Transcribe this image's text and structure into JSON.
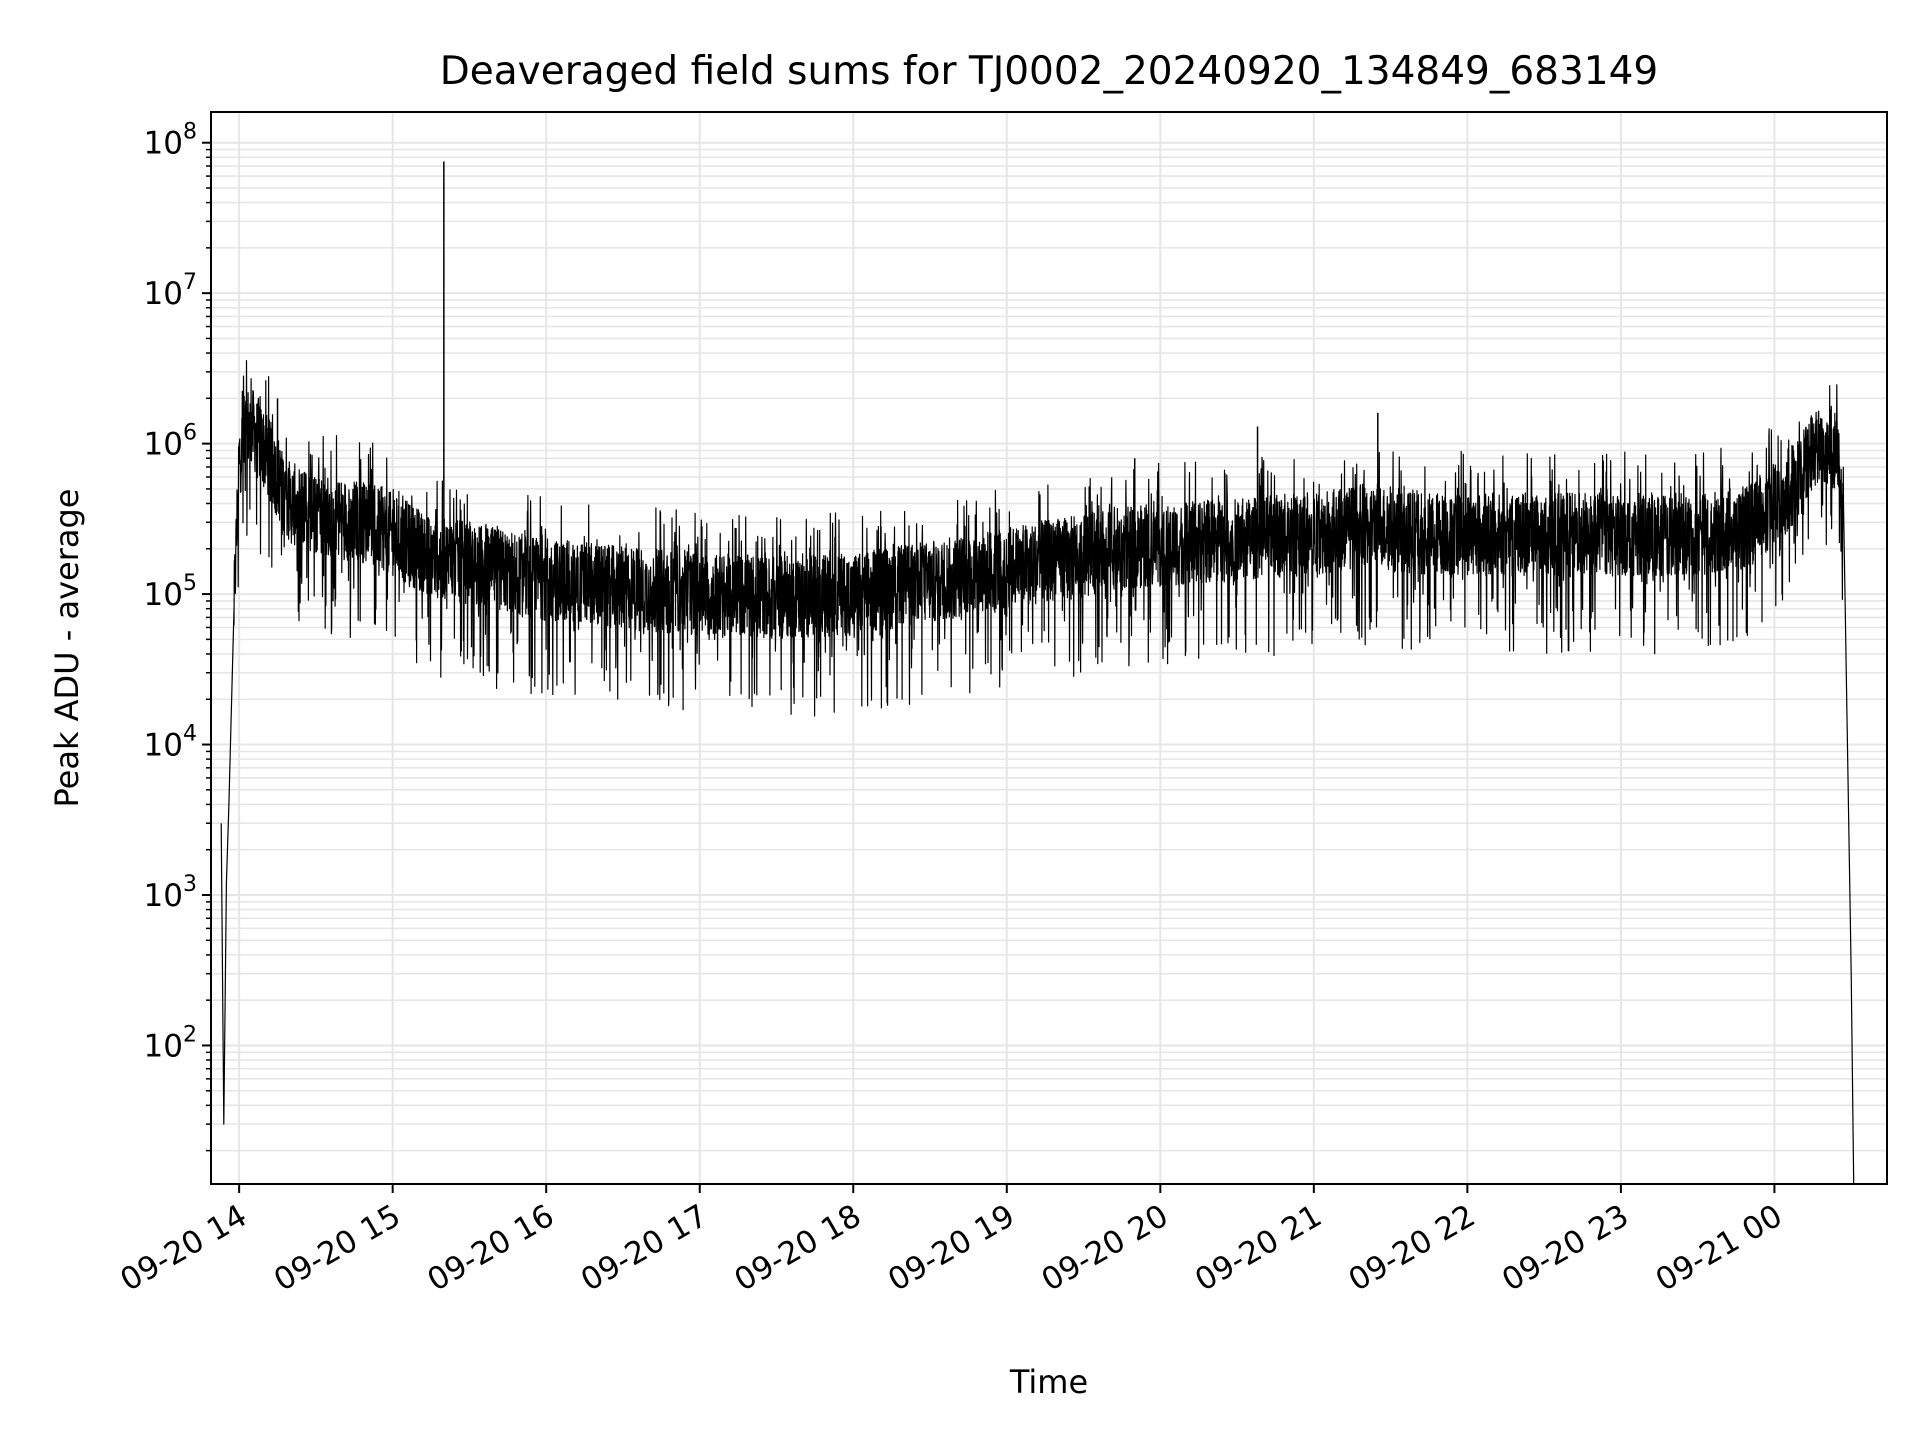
{
  "chart_data": {
    "type": "line",
    "title": "Deaveraged field sums for TJ0002_20240920_134849_683149",
    "xlabel": "Time",
    "ylabel": "Peak ADU - average",
    "yscale": "log",
    "ylim": [
      12,
      160000000
    ],
    "xlim": [
      "2024-09-20 13:49",
      "2024-09-21 00:44"
    ],
    "grid": true,
    "grid_minor": true,
    "line_color": "#000000",
    "grid_color": "#e6e6e6",
    "x_ticks": [
      {
        "label": "09-20 14",
        "t": "2024-09-20 14:00"
      },
      {
        "label": "09-20 15",
        "t": "2024-09-20 15:00"
      },
      {
        "label": "09-20 16",
        "t": "2024-09-20 16:00"
      },
      {
        "label": "09-20 17",
        "t": "2024-09-20 17:00"
      },
      {
        "label": "09-20 18",
        "t": "2024-09-20 18:00"
      },
      {
        "label": "09-20 19",
        "t": "2024-09-20 19:00"
      },
      {
        "label": "09-20 20",
        "t": "2024-09-20 20:00"
      },
      {
        "label": "09-20 21",
        "t": "2024-09-20 21:00"
      },
      {
        "label": "09-20 22",
        "t": "2024-09-20 22:00"
      },
      {
        "label": "09-20 23",
        "t": "2024-09-20 23:00"
      },
      {
        "label": "09-21 00",
        "t": "2024-09-21 00:00"
      }
    ],
    "y_ticks": [
      {
        "base": "10",
        "exp": "2",
        "value": 100
      },
      {
        "base": "10",
        "exp": "3",
        "value": 1000
      },
      {
        "base": "10",
        "exp": "4",
        "value": 10000
      },
      {
        "base": "10",
        "exp": "5",
        "value": 100000
      },
      {
        "base": "10",
        "exp": "6",
        "value": 1000000
      },
      {
        "base": "10",
        "exp": "7",
        "value": 10000000
      },
      {
        "base": "10",
        "exp": "8",
        "value": 100000000
      }
    ],
    "series": [
      {
        "color": "#000000",
        "x": [
          "2024-09-20 13:53",
          "2024-09-20 13:54",
          "2024-09-20 13:55",
          "2024-09-20 13:56",
          "2024-09-20 13:58",
          "2024-09-20 14:00",
          "2024-09-20 14:03",
          "2024-09-20 14:06",
          "2024-09-20 14:10",
          "2024-09-20 14:15",
          "2024-09-20 14:20",
          "2024-09-20 14:30",
          "2024-09-20 14:40",
          "2024-09-20 14:50",
          "2024-09-20 15:00",
          "2024-09-20 15:10",
          "2024-09-20 15:15",
          "2024-09-20 15:20",
          "2024-09-20 15:30",
          "2024-09-20 15:45",
          "2024-09-20 16:00",
          "2024-09-20 16:30",
          "2024-09-20 17:00",
          "2024-09-20 17:30",
          "2024-09-20 18:00",
          "2024-09-20 18:30",
          "2024-09-20 19:00",
          "2024-09-20 19:30",
          "2024-09-20 19:40",
          "2024-09-20 20:00",
          "2024-09-20 20:30",
          "2024-09-20 21:00",
          "2024-09-20 21:25",
          "2024-09-20 21:30",
          "2024-09-20 22:00",
          "2024-09-20 22:30",
          "2024-09-20 23:00",
          "2024-09-20 23:30",
          "2024-09-20 23:50",
          "2024-09-21 00:00",
          "2024-09-21 00:10",
          "2024-09-21 00:15",
          "2024-09-21 00:20",
          "2024-09-21 00:24",
          "2024-09-21 00:27",
          "2024-09-21 00:30",
          "2024-09-21 00:31"
        ],
        "y": [
          3000,
          30,
          1200,
          4000,
          80000,
          800000,
          1300000,
          1200000,
          900000,
          600000,
          400000,
          350000,
          320000,
          300000,
          250000,
          200000,
          180000,
          170000,
          160000,
          140000,
          125000,
          110000,
          100000,
          95000,
          100000,
          120000,
          150000,
          180000,
          200000,
          210000,
          230000,
          250000,
          300000,
          260000,
          250000,
          250000,
          250000,
          250000,
          280000,
          400000,
          600000,
          900000,
          1000000,
          900000,
          400000,
          300,
          12
        ],
        "spikes": [
          {
            "t": "2024-09-20 15:20",
            "value": 75000000
          },
          {
            "t": "2024-09-20 20:38",
            "value": 1300000
          },
          {
            "t": "2024-09-20 21:25",
            "value": 1600000
          },
          {
            "t": "2024-09-20 19:50",
            "value": 800000
          },
          {
            "t": "2024-09-20 14:15",
            "value": 2000000
          }
        ]
      }
    ]
  }
}
